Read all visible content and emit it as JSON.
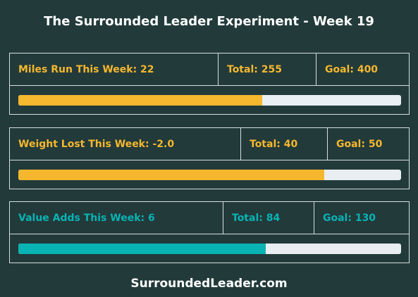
{
  "title": "The Surrounded Leader Experiment - Week 19",
  "colors": {
    "amber": "#f5b72e",
    "teal": "#08b3b4",
    "track": "#e9eef2"
  },
  "goals": [
    {
      "week_label": "Miles Run This Week: 22",
      "total_label": "Total: 255",
      "goal_label": "Goal: 400",
      "progress": 0.6375
    },
    {
      "week_label": "Weight Lost This Week: -2.0",
      "total_label": "Total: 40",
      "goal_label": "Goal: 50",
      "progress": 0.8
    },
    {
      "week_label": "Value Adds This Week: 6",
      "total_label": "Total: 84",
      "goal_label": "Goal: 130",
      "progress": 0.646
    }
  ],
  "footer": "SurroundedLeader.com"
}
